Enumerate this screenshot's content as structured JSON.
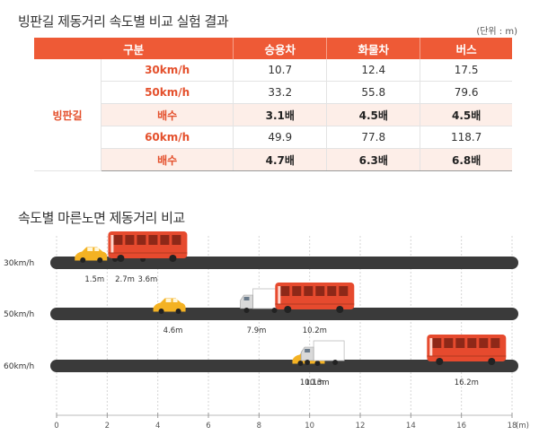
{
  "header": {
    "title": "빙판길 제동거리 속도별 비교 실험 결과",
    "unit": "(단위 : m)"
  },
  "table": {
    "columns": [
      "구분",
      "승용차",
      "화물차",
      "버스"
    ],
    "group_label": "빙판길",
    "rows": [
      {
        "label": "30km/h",
        "values": [
          "10.7",
          "12.4",
          "17.5"
        ],
        "highlight": false
      },
      {
        "label": "50km/h",
        "values": [
          "33.2",
          "55.8",
          "79.6"
        ],
        "highlight": false
      },
      {
        "label": "배수",
        "values": [
          "3.1배",
          "4.5배",
          "4.5배"
        ],
        "highlight": true
      },
      {
        "label": "60km/h",
        "values": [
          "49.9",
          "77.8",
          "118.7"
        ],
        "highlight": false
      },
      {
        "label": "배수",
        "values": [
          "4.7배",
          "6.3배",
          "6.8배"
        ],
        "highlight": true
      }
    ]
  },
  "section2": {
    "title": "속도별 마른노면 제동거리 비교"
  },
  "chart_data": {
    "type": "scatter",
    "title": "속도별 마른노면 제동거리 비교",
    "xlabel": "",
    "ylabel": "",
    "x_unit": "(m)",
    "xlim": [
      0,
      18
    ],
    "xticks": [
      0,
      2,
      4,
      6,
      8,
      10,
      12,
      14,
      16,
      18
    ],
    "grid": true,
    "categories": [
      "30km/h",
      "50km/h",
      "60km/h"
    ],
    "series": [
      {
        "vehicle": "car",
        "values": [
          1.5,
          4.6,
          10.1
        ],
        "labels": [
          "1.5m",
          "4.6m",
          "10.1m"
        ]
      },
      {
        "vehicle": "truck",
        "values": [
          2.7,
          7.9,
          10.3
        ],
        "labels": [
          "2.7m",
          "7.9m",
          "10.3m"
        ]
      },
      {
        "vehicle": "bus",
        "values": [
          3.6,
          10.2,
          16.2
        ],
        "labels": [
          "3.6m",
          "10.2m",
          "16.2m"
        ]
      }
    ],
    "colors": {
      "road": "#3a3a3a",
      "car": "#f4b223",
      "truck": "#ffffff",
      "bus": "#e64a2e",
      "grid": "#d6d6d6"
    }
  }
}
